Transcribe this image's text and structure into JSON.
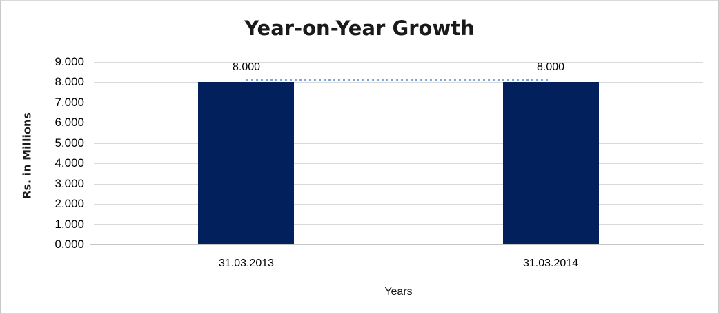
{
  "chart_data": {
    "type": "bar",
    "title": "Year-on-Year Growth",
    "xlabel": "Years",
    "ylabel": "Rs. in Millions",
    "categories": [
      "31.03.2013",
      "31.03.2014"
    ],
    "values": [
      8.0,
      8.0
    ],
    "data_labels": [
      "8.000",
      "8.000"
    ],
    "ylim": [
      0,
      9
    ],
    "ytick_step": 1,
    "ytick_labels": [
      "0.000",
      "1.000",
      "2.000",
      "3.000",
      "4.000",
      "5.000",
      "6.000",
      "7.000",
      "8.000",
      "9.000"
    ],
    "grid": "horizontal",
    "legend": "none",
    "connector": {
      "style": "dotted",
      "y": 8.0
    },
    "colors": {
      "bar": "#02215c",
      "connector_line": "#7fa7dc",
      "gridline": "#d9d9d9",
      "axis_line": "#c6c6c6",
      "text": "#000000",
      "frame_border": "#c9c9c9",
      "background": "#ffffff"
    }
  }
}
